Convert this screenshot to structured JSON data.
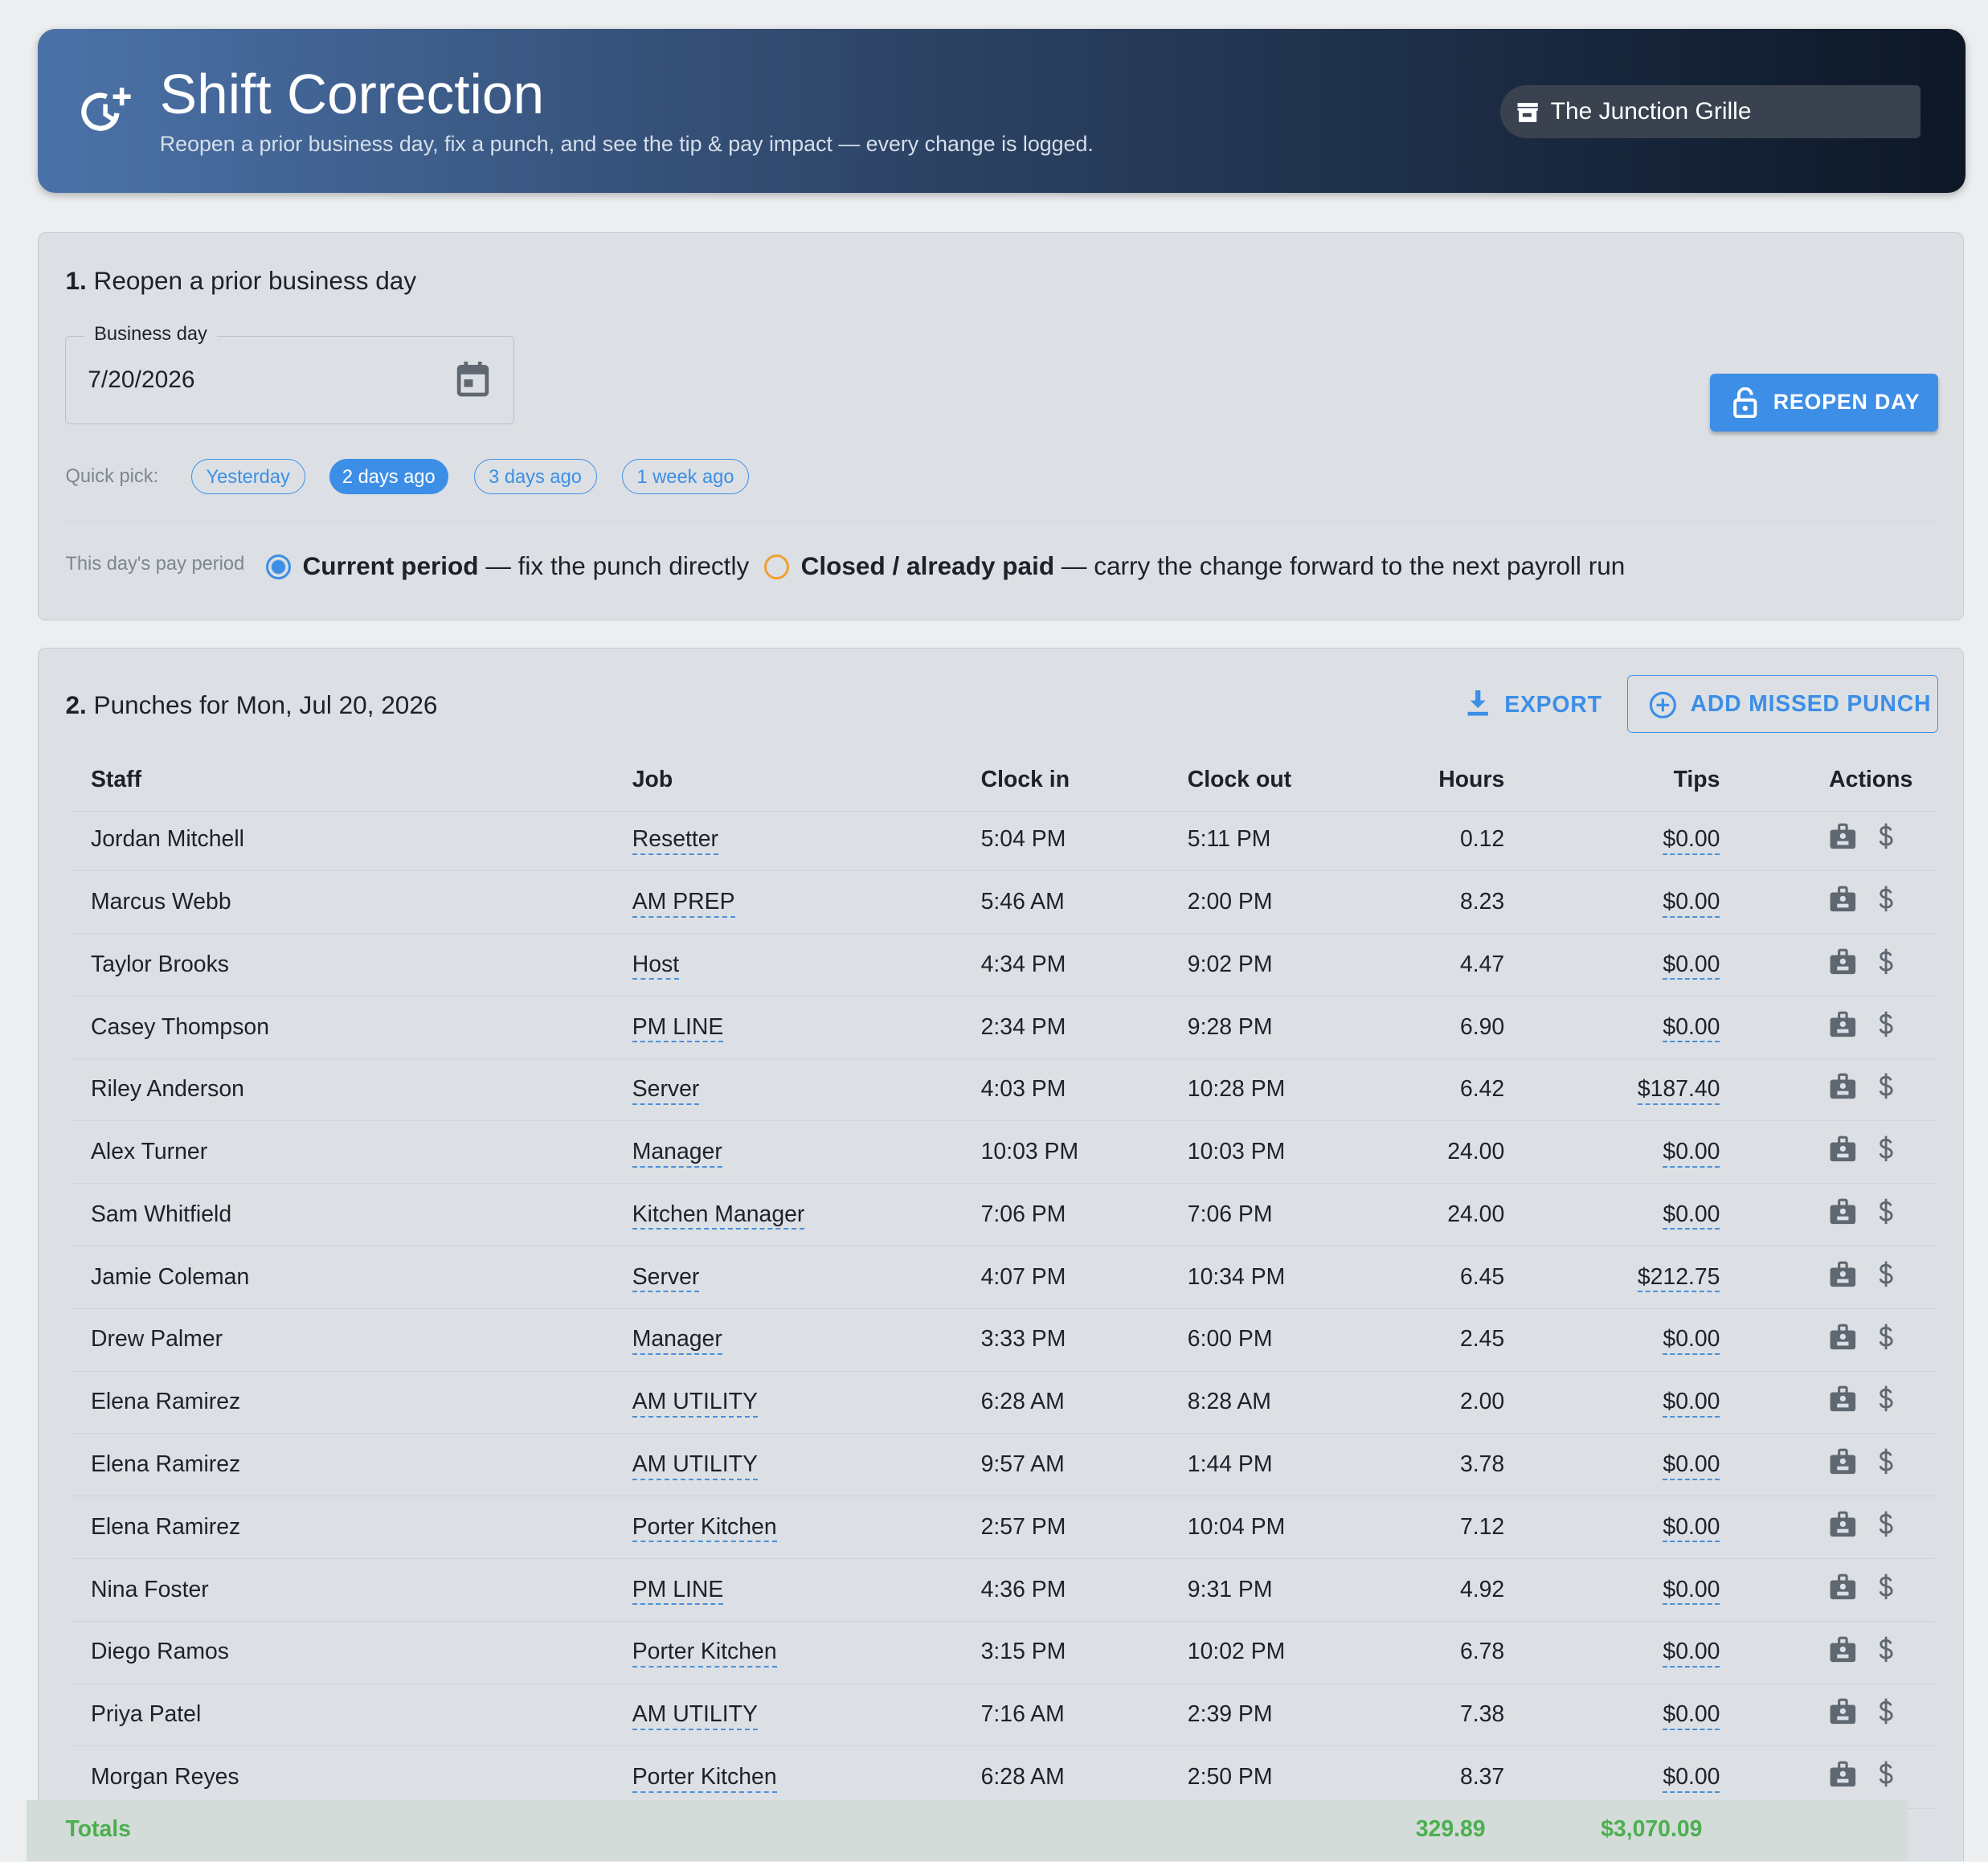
{
  "header": {
    "title": "Shift Correction",
    "subtitle": "Reopen a prior business day, fix a punch, and see the tip & pay impact — every change is logged.",
    "location": "The Junction Grille"
  },
  "section1": {
    "number": "1.",
    "title": "Reopen a prior business day",
    "date_label": "Business day",
    "date_value": "7/20/2026",
    "button": "REOPEN DAY",
    "quick_pick_label": "Quick pick:",
    "quick_picks": [
      "Yesterday",
      "2 days ago",
      "3 days ago",
      "1 week ago"
    ],
    "pay_period_label": "This day's pay period",
    "options": [
      {
        "bold": "Current period",
        "rest": "— fix the punch directly"
      },
      {
        "bold": "Closed / already paid",
        "rest": "— carry the change forward to the next payroll run"
      }
    ]
  },
  "section2": {
    "number": "2.",
    "title": "Punches for Mon, Jul 20, 2026",
    "export": "EXPORT",
    "add": "ADD MISSED PUNCH",
    "columns": [
      "Staff",
      "Job",
      "Clock in",
      "Clock out",
      "Hours",
      "Tips",
      "Actions"
    ],
    "rows": [
      [
        "Jordan Mitchell",
        "Resetter",
        "5:04 PM",
        "5:11 PM",
        "0.12",
        "$0.00"
      ],
      [
        "Marcus Webb",
        "AM PREP",
        "5:46 AM",
        "2:00 PM",
        "8.23",
        "$0.00"
      ],
      [
        "Taylor Brooks",
        "Host",
        "4:34 PM",
        "9:02 PM",
        "4.47",
        "$0.00"
      ],
      [
        "Casey Thompson",
        "PM LINE",
        "2:34 PM",
        "9:28 PM",
        "6.90",
        "$0.00"
      ],
      [
        "Riley Anderson",
        "Server",
        "4:03 PM",
        "10:28 PM",
        "6.42",
        "$187.40"
      ],
      [
        "Alex Turner",
        "Manager",
        "10:03 PM",
        "10:03 PM",
        "24.00",
        "$0.00"
      ],
      [
        "Sam Whitfield",
        "Kitchen Manager",
        "7:06 PM",
        "7:06 PM",
        "24.00",
        "$0.00"
      ],
      [
        "Jamie Coleman",
        "Server",
        "4:07 PM",
        "10:34 PM",
        "6.45",
        "$212.75"
      ],
      [
        "Drew Palmer",
        "Manager",
        "3:33 PM",
        "6:00 PM",
        "2.45",
        "$0.00"
      ],
      [
        "Elena Ramirez",
        "AM UTILITY",
        "6:28 AM",
        "8:28 AM",
        "2.00",
        "$0.00"
      ],
      [
        "Elena Ramirez",
        "AM UTILITY",
        "9:57 AM",
        "1:44 PM",
        "3.78",
        "$0.00"
      ],
      [
        "Elena Ramirez",
        "Porter Kitchen",
        "2:57 PM",
        "10:04 PM",
        "7.12",
        "$0.00"
      ],
      [
        "Nina Foster",
        "PM LINE",
        "4:36 PM",
        "9:31 PM",
        "4.92",
        "$0.00"
      ],
      [
        "Diego Ramos",
        "Porter Kitchen",
        "3:15 PM",
        "10:02 PM",
        "6.78",
        "$0.00"
      ],
      [
        "Priya Patel",
        "AM UTILITY",
        "7:16 AM",
        "2:39 PM",
        "7.38",
        "$0.00"
      ],
      [
        "Morgan Reyes",
        "Porter Kitchen",
        "6:28 AM",
        "2:50 PM",
        "8.37",
        "$0.00"
      ]
    ],
    "totals": {
      "label": "Totals",
      "hours": "329.89",
      "tips": "$3,070.09"
    }
  }
}
